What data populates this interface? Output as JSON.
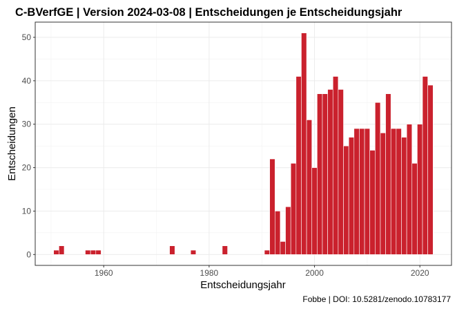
{
  "chart_data": {
    "type": "bar",
    "title": "C-BVerfGE | Version 2024-03-08 | Entscheidungen je Entscheidungsjahr",
    "xlabel": "Entscheidungsjahr",
    "ylabel": "Entscheidungen",
    "caption": "Fobbe | DOI: 10.5281/zenodo.10783177",
    "xlim": [
      1947,
      2026
    ],
    "ylim": [
      -2.5,
      53.5
    ],
    "x_ticks": [
      1960,
      1980,
      2000,
      2020
    ],
    "y_ticks": [
      0,
      10,
      20,
      30,
      40,
      50
    ],
    "grid": true,
    "bar_color": "#ca212d",
    "series": [
      {
        "x": [
          1951,
          1952,
          1957,
          1958,
          1959,
          1973,
          1977,
          1983,
          1991,
          1992,
          1993,
          1994,
          1995,
          1996,
          1997,
          1998,
          1999,
          2000,
          2001,
          2002,
          2003,
          2004,
          2005,
          2006,
          2007,
          2008,
          2009,
          2010,
          2011,
          2012,
          2013,
          2014,
          2015,
          2016,
          2017,
          2018,
          2019,
          2020,
          2021,
          2022
        ],
        "values": [
          1,
          2,
          1,
          1,
          1,
          2,
          1,
          2,
          1,
          22,
          10,
          3,
          11,
          21,
          41,
          51,
          31,
          20,
          37,
          37,
          38,
          41,
          38,
          25,
          27,
          29,
          29,
          29,
          24,
          35,
          28,
          37,
          29,
          29,
          27,
          30,
          21,
          30,
          41,
          39
        ]
      }
    ]
  }
}
